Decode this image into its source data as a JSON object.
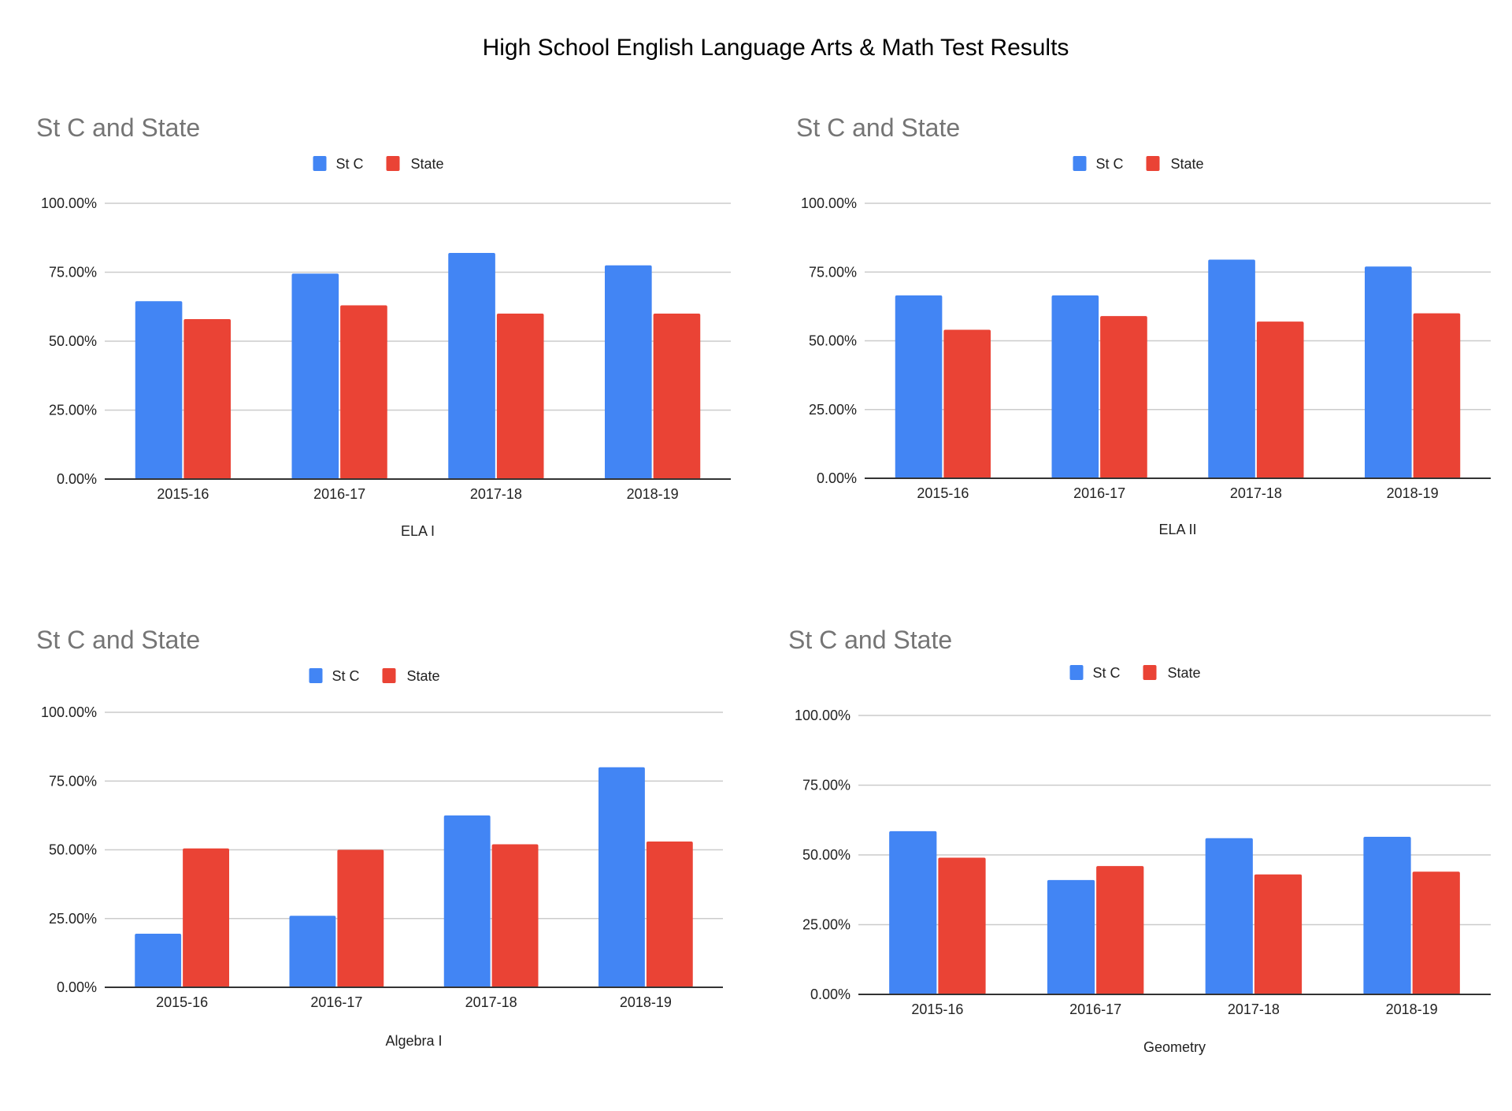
{
  "page_title": "High School English Language Arts & Math Test Results",
  "colors": {
    "stc": "#4285F4",
    "state": "#EA4335",
    "grid": "#cccccc",
    "axis": "#333333",
    "panel_title": "#757575"
  },
  "chart_data": [
    {
      "type": "bar",
      "title": "St C and State",
      "xlabel": "ELA I",
      "ylabel": "",
      "ylim": [
        0,
        100
      ],
      "yticks": [
        "0.00%",
        "25.00%",
        "50.00%",
        "75.00%",
        "100.00%"
      ],
      "grid": true,
      "legend_position": "top-center",
      "categories": [
        "2015-16",
        "2016-17",
        "2017-18",
        "2018-19"
      ],
      "series": [
        {
          "name": "St C",
          "values": [
            64.5,
            74.5,
            82,
            77.5
          ]
        },
        {
          "name": "State",
          "values": [
            58,
            63,
            60,
            60
          ]
        }
      ]
    },
    {
      "type": "bar",
      "title": "St C and State",
      "xlabel": "ELA II",
      "ylabel": "",
      "ylim": [
        0,
        100
      ],
      "yticks": [
        "0.00%",
        "25.00%",
        "50.00%",
        "75.00%",
        "100.00%"
      ],
      "grid": true,
      "legend_position": "top-center",
      "categories": [
        "2015-16",
        "2016-17",
        "2017-18",
        "2018-19"
      ],
      "series": [
        {
          "name": "St C",
          "values": [
            66.5,
            66.5,
            79.5,
            77
          ]
        },
        {
          "name": "State",
          "values": [
            54,
            59,
            57,
            60
          ]
        }
      ]
    },
    {
      "type": "bar",
      "title": "St C and State",
      "xlabel": "Algebra I",
      "ylabel": "",
      "ylim": [
        0,
        100
      ],
      "yticks": [
        "0.00%",
        "25.00%",
        "50.00%",
        "75.00%",
        "100.00%"
      ],
      "grid": true,
      "legend_position": "top-center",
      "categories": [
        "2015-16",
        "2016-17",
        "2017-18",
        "2018-19"
      ],
      "series": [
        {
          "name": "St C",
          "values": [
            19.5,
            26,
            62.5,
            80
          ]
        },
        {
          "name": "State",
          "values": [
            50.5,
            50,
            52,
            53
          ]
        }
      ]
    },
    {
      "type": "bar",
      "title": "St C and State",
      "xlabel": "Geometry",
      "ylabel": "",
      "ylim": [
        0,
        100
      ],
      "yticks": [
        "0.00%",
        "25.00%",
        "50.00%",
        "75.00%",
        "100.00%"
      ],
      "grid": true,
      "legend_position": "top-center",
      "categories": [
        "2015-16",
        "2016-17",
        "2017-18",
        "2018-19"
      ],
      "series": [
        {
          "name": "St C",
          "values": [
            58.5,
            41,
            56,
            56.5
          ]
        },
        {
          "name": "State",
          "values": [
            49,
            46,
            43,
            44
          ]
        }
      ]
    }
  ]
}
